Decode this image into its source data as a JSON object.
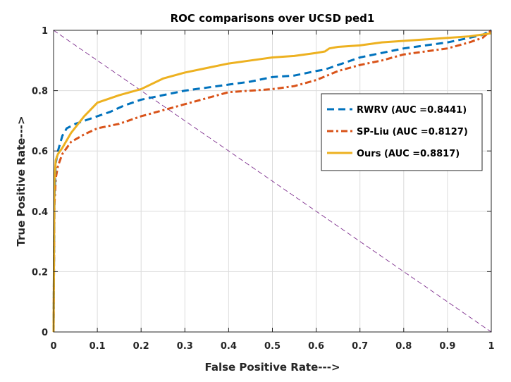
{
  "chart_data": {
    "type": "line",
    "title": "ROC comparisons over UCSD ped1",
    "xlabel": "False Positive Rate--->",
    "ylabel": "True Positive Rate--->",
    "xlim": [
      0,
      1
    ],
    "ylim": [
      0,
      1
    ],
    "xticks": [
      0,
      0.1,
      0.2,
      0.3,
      0.4,
      0.5,
      0.6,
      0.7,
      0.8,
      0.9,
      1
    ],
    "yticks": [
      0,
      0.2,
      0.4,
      0.6,
      0.8,
      1
    ],
    "xtick_labels": [
      "0",
      "0.1",
      "0.2",
      "0.3",
      "0.4",
      "0.5",
      "0.6",
      "0.7",
      "0.8",
      "0.9",
      "1"
    ],
    "ytick_labels": [
      "0",
      "0.2",
      "0.4",
      "0.6",
      "0.8",
      "1"
    ],
    "grid": true,
    "legend_position": "top-right",
    "series": [
      {
        "name": "RWRV (AUC =0.8441)",
        "color": "#0072BD",
        "style": "dashed",
        "x": [
          0,
          0.002,
          0.005,
          0.01,
          0.02,
          0.03,
          0.05,
          0.07,
          0.1,
          0.13,
          0.16,
          0.2,
          0.25,
          0.3,
          0.35,
          0.4,
          0.45,
          0.5,
          0.55,
          0.6,
          0.62,
          0.65,
          0.7,
          0.75,
          0.8,
          0.85,
          0.9,
          0.95,
          0.98,
          1
        ],
        "y": [
          0,
          0.45,
          0.56,
          0.6,
          0.65,
          0.675,
          0.69,
          0.7,
          0.715,
          0.73,
          0.75,
          0.77,
          0.785,
          0.8,
          0.81,
          0.82,
          0.83,
          0.845,
          0.85,
          0.865,
          0.87,
          0.885,
          0.91,
          0.925,
          0.94,
          0.95,
          0.96,
          0.975,
          0.985,
          1
        ]
      },
      {
        "name": "SP-Liu (AUC =0.8127)",
        "color": "#D95319",
        "style": "dash-dot",
        "x": [
          0,
          0.002,
          0.005,
          0.01,
          0.02,
          0.04,
          0.07,
          0.1,
          0.15,
          0.2,
          0.25,
          0.3,
          0.35,
          0.4,
          0.45,
          0.5,
          0.55,
          0.6,
          0.65,
          0.7,
          0.75,
          0.8,
          0.85,
          0.9,
          0.95,
          0.98,
          1
        ],
        "y": [
          0,
          0.42,
          0.51,
          0.55,
          0.59,
          0.63,
          0.655,
          0.675,
          0.69,
          0.715,
          0.735,
          0.755,
          0.775,
          0.795,
          0.8,
          0.805,
          0.815,
          0.835,
          0.865,
          0.885,
          0.9,
          0.92,
          0.93,
          0.94,
          0.96,
          0.975,
          1
        ]
      },
      {
        "name": "Ours (AUC =0.8817)",
        "color": "#EDB120",
        "style": "solid",
        "x": [
          0,
          0.002,
          0.005,
          0.01,
          0.02,
          0.04,
          0.07,
          0.1,
          0.15,
          0.2,
          0.25,
          0.3,
          0.35,
          0.4,
          0.45,
          0.5,
          0.55,
          0.6,
          0.62,
          0.63,
          0.65,
          0.7,
          0.75,
          0.8,
          0.85,
          0.9,
          0.95,
          1
        ],
        "y": [
          0,
          0.5,
          0.57,
          0.59,
          0.61,
          0.66,
          0.715,
          0.76,
          0.785,
          0.805,
          0.84,
          0.86,
          0.875,
          0.89,
          0.9,
          0.91,
          0.915,
          0.925,
          0.93,
          0.94,
          0.945,
          0.95,
          0.96,
          0.965,
          0.97,
          0.975,
          0.98,
          0.99
        ]
      },
      {
        "name": "",
        "color": "#7E2F8E",
        "style": "dashed-thin",
        "x": [
          0,
          1
        ],
        "y": [
          1,
          0
        ]
      }
    ]
  }
}
